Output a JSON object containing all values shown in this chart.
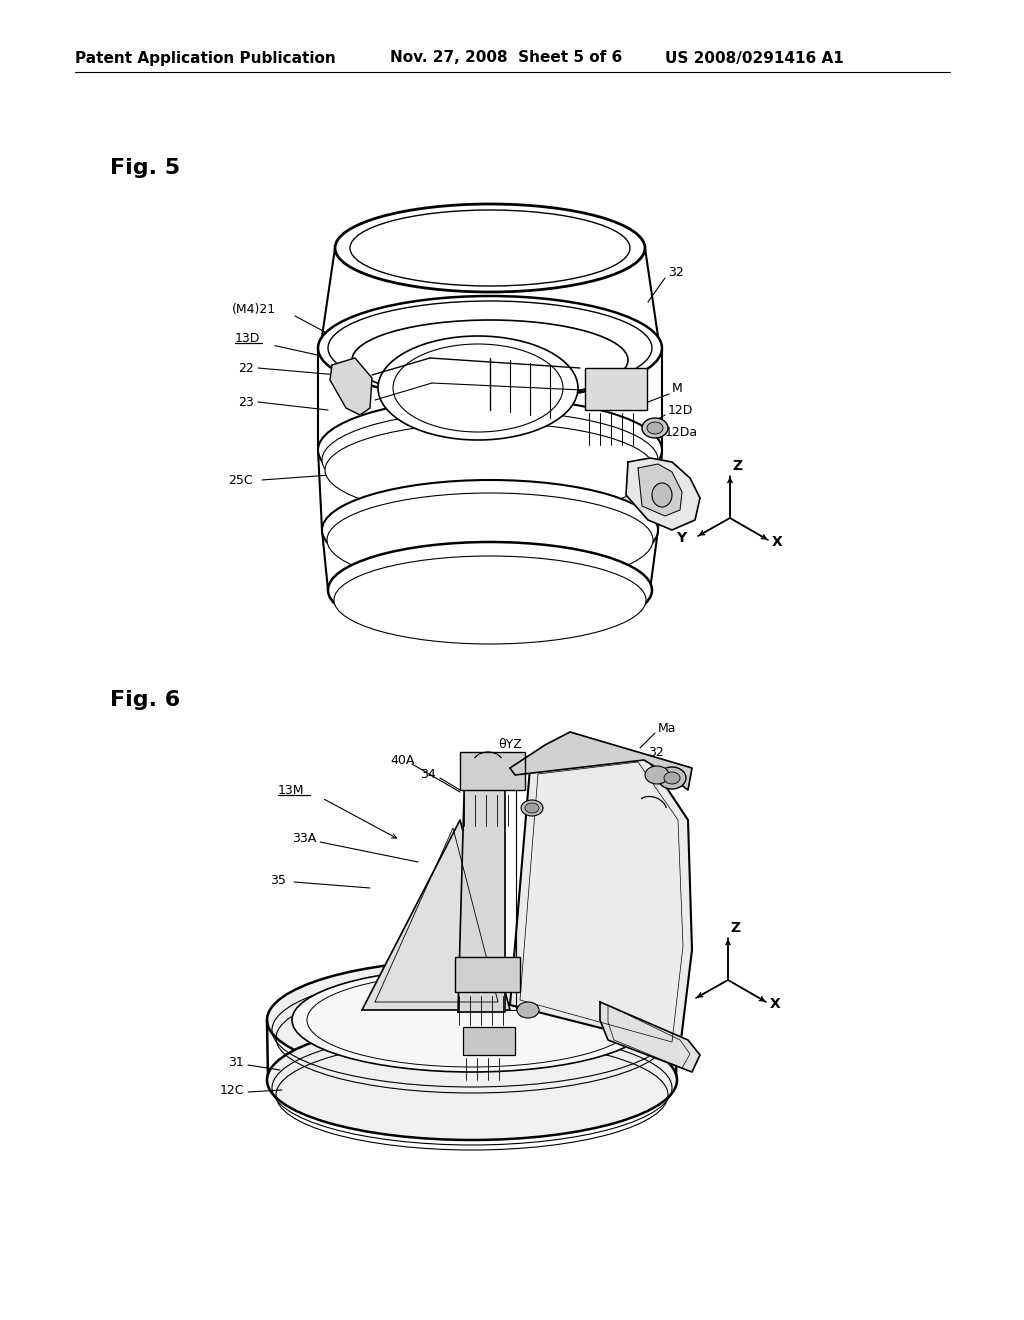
{
  "background_color": "#ffffff",
  "header_left": "Patent Application Publication",
  "header_center": "Nov. 27, 2008  Sheet 5 of 6",
  "header_right": "US 2008/0291416 A1",
  "header_fontsize": 11
}
